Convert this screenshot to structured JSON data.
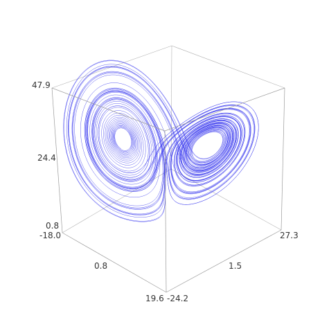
{
  "chart_data": {
    "type": "line",
    "dimensionality": "3d",
    "title": "",
    "xlabel": "",
    "ylabel": "",
    "zlabel": "",
    "series": [
      {
        "curve": "Lorenz attractor trajectory",
        "parameters": {
          "sigma": 10,
          "rho": 28,
          "beta": 2.6667
        },
        "color": "#3333ee"
      }
    ],
    "x_range": [
      -18.0,
      19.6
    ],
    "y_range": [
      -24.2,
      27.3
    ],
    "z_range": [
      0.8,
      47.9
    ],
    "x_ticks": [
      "-18.0",
      "0.8",
      "19.6"
    ],
    "y_ticks": [
      "-24.2",
      "1.5",
      "27.3"
    ],
    "z_ticks": [
      "0.8",
      "24.4",
      "47.9"
    ],
    "grid": false,
    "box": true
  }
}
